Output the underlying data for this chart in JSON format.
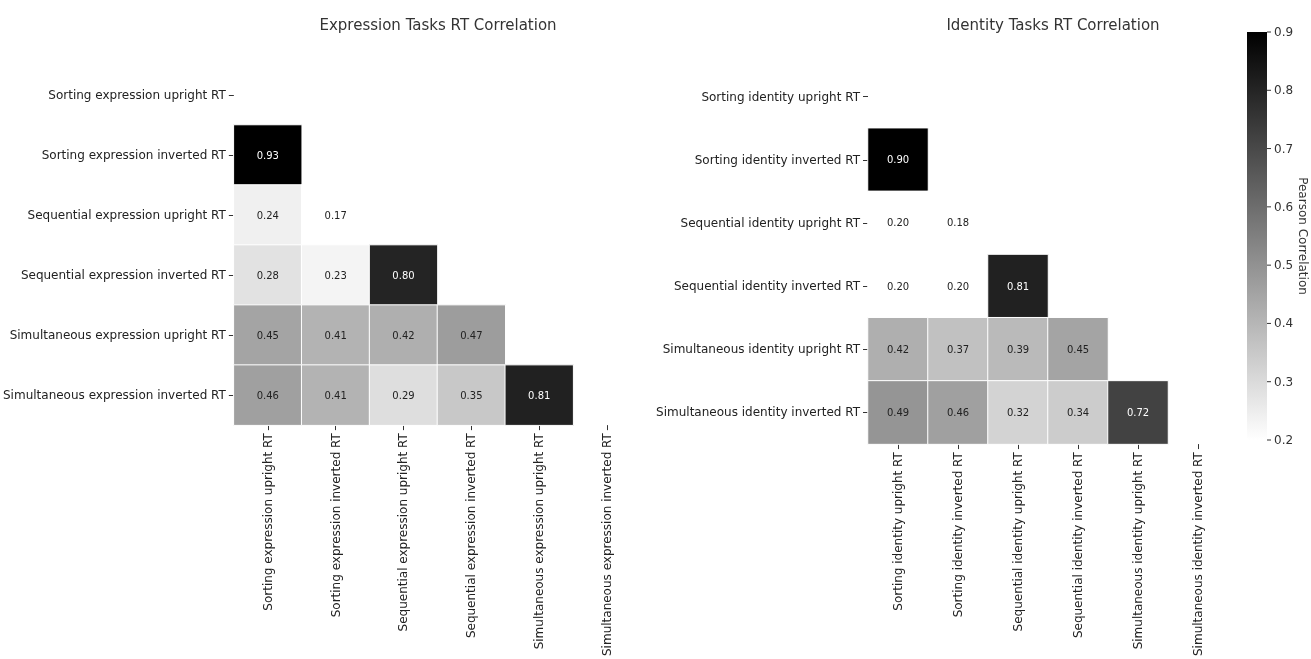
{
  "chart_data": [
    {
      "type": "heatmap",
      "title": "Expression Tasks RT Correlation",
      "categories": [
        "Sorting expression upright RT",
        "Sorting expression inverted RT",
        "Sequential expression upright RT",
        "Sequential expression inverted RT",
        "Simultaneous expression upright RT",
        "Simultaneous expression inverted RT"
      ],
      "y_categories": [
        "Sorting expression upright RT",
        "Sorting expression inverted RT",
        "Sequential expression upright RT",
        "Sequential expression inverted RT",
        "Simultaneous expression upright RT",
        "Simultaneous expression inverted RT"
      ],
      "cells": [
        [
          null,
          null,
          null,
          null,
          null,
          null
        ],
        [
          0.93,
          null,
          null,
          null,
          null,
          null
        ],
        [
          0.24,
          0.17,
          null,
          null,
          null,
          null
        ],
        [
          0.28,
          0.23,
          0.8,
          null,
          null,
          null
        ],
        [
          0.45,
          0.41,
          0.42,
          0.47,
          null,
          null
        ],
        [
          0.46,
          0.41,
          0.29,
          0.35,
          0.81,
          null
        ]
      ],
      "cell_labels": [
        [
          null,
          null,
          null,
          null,
          null,
          null
        ],
        [
          "0.93",
          null,
          null,
          null,
          null,
          null
        ],
        [
          "0.24",
          "0.17",
          null,
          null,
          null,
          null
        ],
        [
          "0.28",
          "0.23",
          "0.80",
          null,
          null,
          null
        ],
        [
          "0.45",
          "0.41",
          "0.42",
          "0.47",
          null,
          null
        ],
        [
          "0.46",
          "0.41",
          "0.29",
          "0.35",
          "0.81",
          null
        ]
      ]
    },
    {
      "type": "heatmap",
      "title": "Identity Tasks RT Correlation",
      "categories": [
        "Sorting identity upright RT",
        "Sorting identity inverted RT",
        "Sequential identity upright RT",
        "Sequential identity inverted RT",
        "Simultaneous identity upright RT",
        "Simultaneous identity inverted RT"
      ],
      "y_categories": [
        "Sorting identity upright RT",
        "Sorting identity inverted RT",
        "Sequential identity upright RT",
        "Sequential identity inverted RT",
        "Simultaneous identity upright RT",
        "Simultaneous identity inverted RT"
      ],
      "cells": [
        [
          null,
          null,
          null,
          null,
          null,
          null
        ],
        [
          0.9,
          null,
          null,
          null,
          null,
          null
        ],
        [
          0.2,
          0.18,
          null,
          null,
          null,
          null
        ],
        [
          0.2,
          0.2,
          0.81,
          null,
          null,
          null
        ],
        [
          0.42,
          0.37,
          0.39,
          0.45,
          null,
          null
        ],
        [
          0.49,
          0.46,
          0.32,
          0.34,
          0.72,
          null
        ]
      ],
      "cell_labels": [
        [
          null,
          null,
          null,
          null,
          null,
          null
        ],
        [
          "0.90",
          null,
          null,
          null,
          null,
          null
        ],
        [
          "0.20",
          "0.18",
          null,
          null,
          null,
          null
        ],
        [
          "0.20",
          "0.20",
          "0.81",
          null,
          null,
          null
        ],
        [
          "0.42",
          "0.37",
          "0.39",
          "0.45",
          null,
          null
        ],
        [
          "0.49",
          "0.46",
          "0.32",
          "0.34",
          "0.72",
          null
        ]
      ],
      "clim": [
        0.2,
        0.9
      ],
      "cticks": [
        0.2,
        0.3,
        0.4,
        0.5,
        0.6,
        0.7,
        0.8,
        0.9
      ],
      "clabel": "Pearson Correlation"
    }
  ]
}
